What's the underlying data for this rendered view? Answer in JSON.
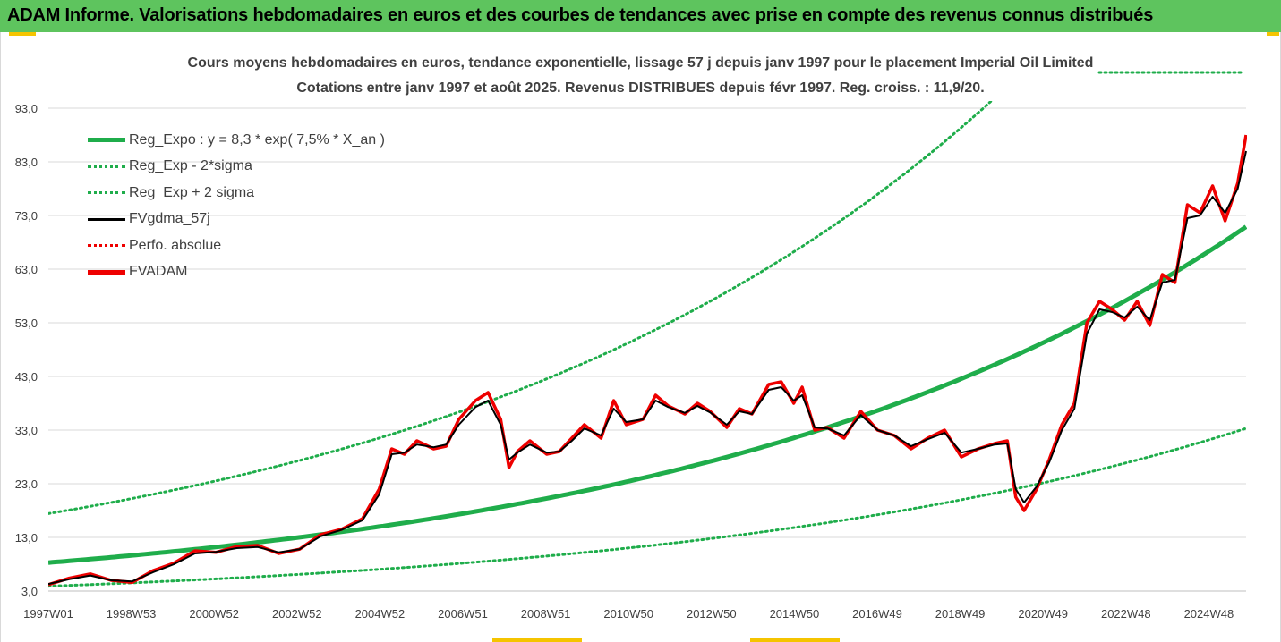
{
  "banner": {
    "title": "ADAM Informe. Valorisations hebdomadaires en euros et des courbes de tendances avec prise en compte des revenus connus distribués"
  },
  "colors": {
    "banner_bg": "#5ec45e",
    "trend_green": "#1fad4b",
    "price_red": "#ee0000",
    "smooth_black": "#000000",
    "accent_yellow": "#f5c400"
  },
  "chart_data": {
    "type": "line",
    "title_line1": "Cours moyens hebdomadaires en euros, tendance exponentielle, lissage 57 j depuis janv 1997 pour le placement Imperial Oil Limited",
    "title_line2": "Cotations entre janv 1997 et août 2025.  Revenus DISTRIBUES depuis févr 1997.  Reg. croiss. : 11,9/20.",
    "ylim": [
      3,
      93
    ],
    "y_ticks": [
      "3,0",
      "13,0",
      "23,0",
      "33,0",
      "43,0",
      "53,0",
      "63,0",
      "73,0",
      "83,0",
      "93,0"
    ],
    "x_ticks": [
      "1997W01",
      "1998W53",
      "2000W52",
      "2002W52",
      "2004W52",
      "2006W51",
      "2008W51",
      "2010W50",
      "2012W50",
      "2014W50",
      "2016W49",
      "2018W49",
      "2020W49",
      "2022W48",
      "2024W48"
    ],
    "grid": true,
    "legend_position": "top-left",
    "legend": [
      {
        "label": "Reg_Expo : y = 8,3 * exp( 7,5% *  X_an )",
        "style": "solid-thick",
        "color": "#1fad4b"
      },
      {
        "label": "Reg_Exp - 2*sigma",
        "style": "dotted",
        "color": "#1fad4b"
      },
      {
        "label": "Reg_Exp + 2 sigma",
        "style": "dotted",
        "color": "#1fad4b"
      },
      {
        "label": "FVgdma_57j",
        "style": "solid",
        "color": "#000000"
      },
      {
        "label": "Perfo. absolue",
        "style": "dotted",
        "color": "#ee0000"
      },
      {
        "label": "FVADAM",
        "style": "solid-thick",
        "color": "#ee0000"
      }
    ],
    "regression": {
      "a": 8.3,
      "rate": 0.075
    },
    "sigma_band": {
      "lower_factor": 0.47,
      "upper_factor": 2.1
    },
    "series": [
      {
        "name": "FVADAM",
        "x": [
          1997.0,
          1997.5,
          1998.0,
          1998.5,
          1999.0,
          1999.5,
          2000.0,
          2000.5,
          2001.0,
          2001.5,
          2002.0,
          2002.5,
          2003.0,
          2003.5,
          2004.0,
          2004.5,
          2004.9,
          2005.2,
          2005.5,
          2005.8,
          2006.2,
          2006.5,
          2006.8,
          2007.2,
          2007.5,
          2007.8,
          2008.0,
          2008.2,
          2008.5,
          2008.9,
          2009.2,
          2009.5,
          2009.8,
          2010.2,
          2010.5,
          2010.8,
          2011.2,
          2011.5,
          2011.8,
          2012.2,
          2012.5,
          2012.8,
          2013.2,
          2013.5,
          2013.8,
          2014.2,
          2014.5,
          2014.8,
          2015.0,
          2015.3,
          2015.6,
          2016.0,
          2016.4,
          2016.8,
          2017.2,
          2017.6,
          2018.0,
          2018.4,
          2018.8,
          2019.2,
          2019.6,
          2019.9,
          2020.1,
          2020.3,
          2020.6,
          2020.9,
          2021.2,
          2021.5,
          2021.8,
          2022.1,
          2022.4,
          2022.7,
          2023.0,
          2023.3,
          2023.6,
          2023.9,
          2024.2,
          2024.5,
          2024.8,
          2025.1,
          2025.4,
          2025.6
        ],
        "values": [
          4.2,
          5.4,
          6.2,
          5.0,
          4.6,
          6.8,
          8.2,
          10.5,
          10.2,
          11.3,
          11.5,
          10.0,
          10.8,
          13.5,
          14.5,
          16.5,
          22.0,
          29.5,
          28.5,
          31.0,
          29.5,
          30.0,
          35.0,
          38.5,
          40.0,
          35.0,
          26.0,
          29.0,
          31.0,
          28.5,
          29.0,
          31.5,
          34.0,
          31.5,
          38.5,
          34.0,
          35.0,
          39.5,
          37.5,
          36.0,
          38.0,
          36.5,
          33.5,
          37.0,
          36.0,
          41.5,
          42.0,
          38.0,
          41.0,
          33.0,
          33.5,
          31.5,
          36.5,
          33.0,
          32.0,
          29.5,
          31.5,
          33.0,
          28.0,
          29.5,
          30.5,
          31.0,
          20.5,
          18.0,
          22.0,
          27.5,
          34.0,
          38.0,
          53.0,
          57.0,
          55.5,
          53.5,
          57.0,
          52.5,
          62.0,
          60.5,
          75.0,
          73.5,
          78.5,
          72.0,
          79.0,
          88.0
        ]
      },
      {
        "name": "FVgdma_57j",
        "x": [
          1997.0,
          1997.5,
          1998.0,
          1998.5,
          1999.0,
          1999.5,
          2000.0,
          2000.5,
          2001.0,
          2001.5,
          2002.0,
          2002.5,
          2003.0,
          2003.5,
          2004.0,
          2004.5,
          2004.9,
          2005.2,
          2005.5,
          2005.8,
          2006.2,
          2006.5,
          2006.8,
          2007.2,
          2007.5,
          2007.8,
          2008.0,
          2008.2,
          2008.5,
          2008.9,
          2009.2,
          2009.5,
          2009.8,
          2010.2,
          2010.5,
          2010.8,
          2011.2,
          2011.5,
          2011.8,
          2012.2,
          2012.5,
          2012.8,
          2013.2,
          2013.5,
          2013.8,
          2014.2,
          2014.5,
          2014.8,
          2015.0,
          2015.3,
          2015.6,
          2016.0,
          2016.4,
          2016.8,
          2017.2,
          2017.6,
          2018.0,
          2018.4,
          2018.8,
          2019.2,
          2019.6,
          2019.9,
          2020.1,
          2020.3,
          2020.6,
          2020.9,
          2021.2,
          2021.5,
          2021.8,
          2022.1,
          2022.4,
          2022.7,
          2023.0,
          2023.3,
          2023.6,
          2023.9,
          2024.2,
          2024.5,
          2024.8,
          2025.1,
          2025.4,
          2025.6
        ],
        "values": [
          4.3,
          5.2,
          5.9,
          5.0,
          4.8,
          6.5,
          8.0,
          10.0,
          10.3,
          11.0,
          11.2,
          10.2,
          10.8,
          13.2,
          14.4,
          16.2,
          21.0,
          28.5,
          28.8,
          30.3,
          29.8,
          30.3,
          34.0,
          37.3,
          38.5,
          34.0,
          27.5,
          28.8,
          30.3,
          28.8,
          29.0,
          31.0,
          33.3,
          32.0,
          37.0,
          34.5,
          35.0,
          38.5,
          37.3,
          36.2,
          37.5,
          36.3,
          34.0,
          36.5,
          36.0,
          40.5,
          41.0,
          38.5,
          39.5,
          33.5,
          33.3,
          32.0,
          35.8,
          33.0,
          32.0,
          30.0,
          31.3,
          32.5,
          28.8,
          29.5,
          30.3,
          30.5,
          22.0,
          19.5,
          22.5,
          27.0,
          33.0,
          37.0,
          51.0,
          55.5,
          55.0,
          54.0,
          56.0,
          53.5,
          60.5,
          61.0,
          72.5,
          73.0,
          76.5,
          73.5,
          78.0,
          85.0
        ]
      }
    ]
  }
}
